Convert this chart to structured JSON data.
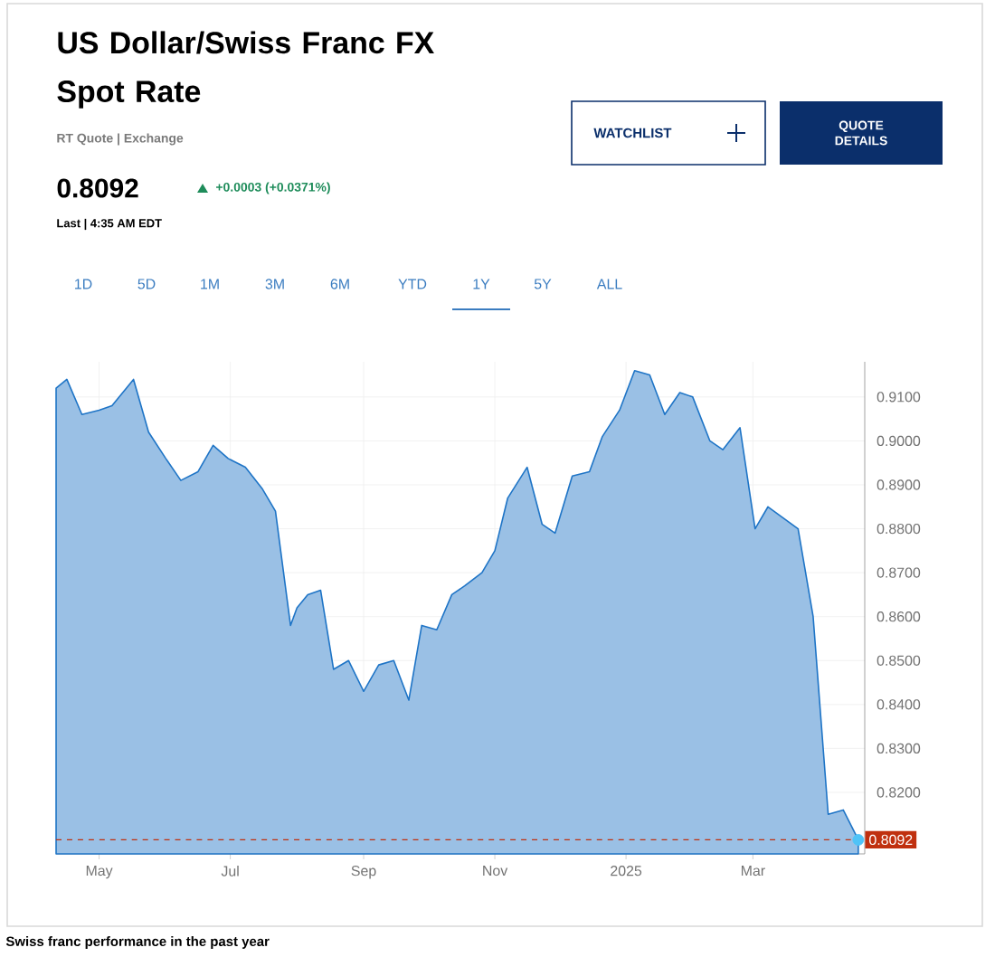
{
  "chart_data": {
    "type": "area",
    "title": "US Dollar/Swiss Franc FX Spot Rate",
    "subtitle": "RT Quote | Exchange",
    "annotations": [
      "0.8092",
      "+0.0003 (+0.0371%)",
      "Last | 4:35 AM EDT",
      "WATCHLIST",
      "QUOTE DETAILS",
      "1D",
      "5D",
      "1M",
      "3M",
      "6M",
      "YTD",
      "1Y",
      "5Y",
      "ALL",
      "Swiss franc performance in the past year"
    ],
    "series": [
      {
        "color": "#1e74c6",
        "x": [
          "2024-04-11",
          "2024-04-16",
          "2024-04-23",
          "2024-05-01",
          "2024-05-07",
          "2024-05-17",
          "2024-05-24",
          "2024-06-01",
          "2024-06-08",
          "2024-06-16",
          "2024-06-23",
          "2024-06-30",
          "2024-07-08",
          "2024-07-16",
          "2024-07-22",
          "2024-07-29",
          "2024-08-01",
          "2024-08-06",
          "2024-08-12",
          "2024-08-18",
          "2024-08-25",
          "2024-09-01",
          "2024-09-08",
          "2024-09-15",
          "2024-09-22",
          "2024-09-28",
          "2024-10-05",
          "2024-10-12",
          "2024-10-18",
          "2024-10-26",
          "2024-11-01",
          "2024-11-07",
          "2024-11-16",
          "2024-11-23",
          "2024-11-29",
          "2024-12-07",
          "2024-12-15",
          "2024-12-21",
          "2024-12-29",
          "2025-01-05",
          "2025-01-12",
          "2025-01-19",
          "2025-01-26",
          "2025-02-01",
          "2025-02-09",
          "2025-02-15",
          "2025-02-23",
          "2025-03-02",
          "2025-03-08",
          "2025-03-22",
          "2025-03-29",
          "2025-04-05",
          "2025-04-12",
          "2025-04-19"
        ],
        "values": [
          0.912,
          0.914,
          0.906,
          0.907,
          0.908,
          0.914,
          0.902,
          0.896,
          0.891,
          0.893,
          0.899,
          0.896,
          0.894,
          0.889,
          0.884,
          0.858,
          0.862,
          0.865,
          0.866,
          0.848,
          0.85,
          0.843,
          0.849,
          0.85,
          0.841,
          0.858,
          0.857,
          0.865,
          0.867,
          0.87,
          0.875,
          0.887,
          0.894,
          0.881,
          0.879,
          0.892,
          0.893,
          0.901,
          0.907,
          0.916,
          0.915,
          0.906,
          0.911,
          0.91,
          0.9,
          0.898,
          0.903,
          0.88,
          0.885,
          0.88,
          0.86,
          0.815,
          0.816,
          0.8092
        ]
      },
      {
        "type": "scatter",
        "color": "#4fc3f7",
        "x": [
          "2025-04-19"
        ],
        "values": [
          0.8092
        ]
      }
    ],
    "xlim": [
      "2024-04-11",
      "2025-04-22"
    ],
    "xticks": [
      {
        "value": "2024-05-01",
        "label": "May"
      },
      {
        "value": "2024-07-01",
        "label": "Jul"
      },
      {
        "value": "2024-09-01",
        "label": "Sep"
      },
      {
        "value": "2024-11-01",
        "label": "Nov"
      },
      {
        "value": "2025-01-01",
        "label": "2025"
      },
      {
        "value": "2025-03-01",
        "label": "Mar"
      }
    ],
    "ylim": [
      0.806,
      0.918
    ],
    "yticks": [
      {
        "value": 0.82,
        "label": "0.8200"
      },
      {
        "value": 0.83,
        "label": "0.8300"
      },
      {
        "value": 0.84,
        "label": "0.8400"
      },
      {
        "value": 0.85,
        "label": "0.8500"
      },
      {
        "value": 0.86,
        "label": "0.8600"
      },
      {
        "value": 0.87,
        "label": "0.8700"
      },
      {
        "value": 0.88,
        "label": "0.8800"
      },
      {
        "value": 0.89,
        "label": "0.8900"
      },
      {
        "value": 0.9,
        "label": "0.9000"
      },
      {
        "value": 0.91,
        "label": "0.9100"
      }
    ],
    "ref_lines": [
      {
        "axis": "y",
        "value": 0.8092,
        "label": "0.8092",
        "color": "#c0300f",
        "line_style": "dashed"
      }
    ],
    "grid": true
  }
}
